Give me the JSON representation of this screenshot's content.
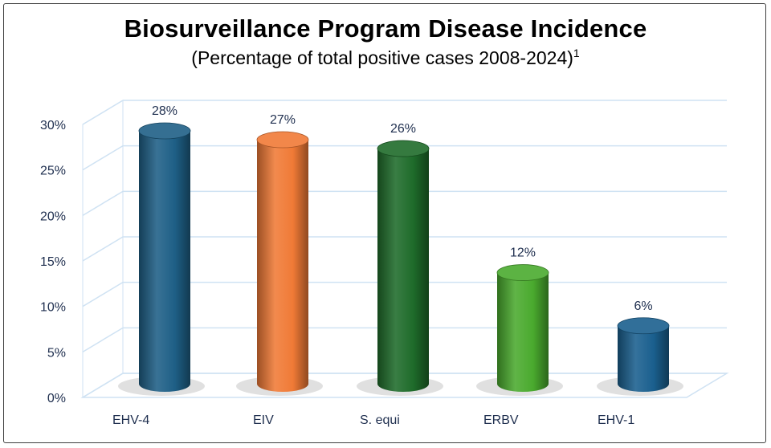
{
  "chart_data": {
    "type": "bar",
    "title": "Biosurveillance Program Disease Incidence",
    "subtitle": "(Percentage of total positive cases 2008-2024)",
    "subtitle_footnote": "1",
    "categories": [
      "EHV-4",
      "EIV",
      "S. equi",
      "ERBV",
      "EHV-1"
    ],
    "values": [
      28,
      27,
      26,
      12,
      6
    ],
    "data_labels": [
      "28%",
      "27%",
      "26%",
      "12%",
      "6%"
    ],
    "colors": [
      "#1e5f86",
      "#f07a36",
      "#1e6b2a",
      "#4aaa2e",
      "#1a5f8e"
    ],
    "ylim": [
      0,
      30
    ],
    "yticks": [
      0,
      5,
      10,
      15,
      20,
      25,
      30
    ],
    "ytick_labels": [
      "0%",
      "5%",
      "10%",
      "15%",
      "20%",
      "25%",
      "30%"
    ],
    "xlabel": "",
    "ylabel": "",
    "grid": true,
    "legend": "none",
    "style": "3d-cylinder"
  }
}
